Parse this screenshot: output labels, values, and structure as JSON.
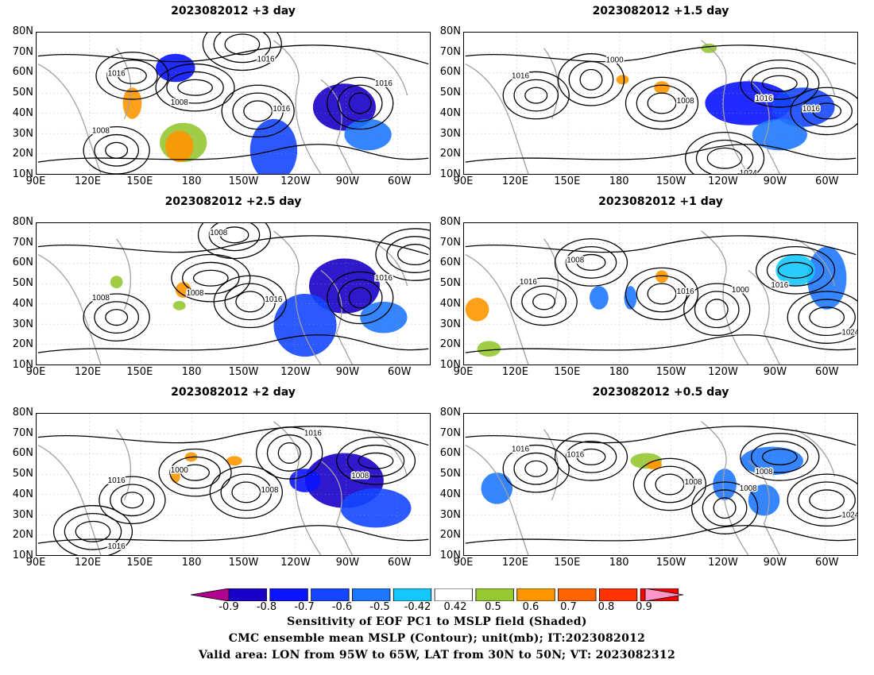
{
  "panels": [
    {
      "title": "2023082012 +3 day",
      "contour_labels": [
        "1016",
        "1008",
        "1008",
        "1016",
        "1016",
        "1016",
        "1008",
        "1016"
      ]
    },
    {
      "title": "2023082012 +1.5 day",
      "contour_labels": [
        "1008",
        "1016",
        "1008",
        "1000",
        "1016",
        "1024",
        "1016",
        "1008",
        "1016"
      ]
    },
    {
      "title": "2023082012 +2.5 day",
      "contour_labels": [
        "1016",
        "1016",
        "1008",
        "1016",
        "1008",
        "1016",
        "1008"
      ]
    },
    {
      "title": "2023082012 +1 day",
      "contour_labels": [
        "1008",
        "1008",
        "1016",
        "1000",
        "1008",
        "1024",
        "1016",
        "1016"
      ]
    },
    {
      "title": "2023082012 +2 day",
      "contour_labels": [
        "1016",
        "1008",
        "1016",
        "1016",
        "1000",
        "1016",
        "1016",
        "1008",
        "1008"
      ]
    },
    {
      "title": "2023082012 +0.5 day",
      "contour_labels": [
        "1008",
        "1016",
        "1000",
        "1008",
        "1016",
        "1024",
        "1016",
        "1008",
        "1008"
      ]
    }
  ],
  "lat_labels": [
    "80N",
    "70N",
    "60N",
    "50N",
    "40N",
    "30N",
    "20N",
    "10N"
  ],
  "lon_labels": [
    "90E",
    "120E",
    "150E",
    "180",
    "150W",
    "120W",
    "90W",
    "60W"
  ],
  "colorbar": {
    "labels": [
      "-0.9",
      "-0.8",
      "-0.7",
      "-0.6",
      "-0.5",
      "-0.42",
      "0.42",
      "0.5",
      "0.6",
      "0.7",
      "0.8",
      "0.9"
    ],
    "colors": [
      "#b0008e",
      "#1a00c8",
      "#0a14ff",
      "#1446ff",
      "#1e78ff",
      "#14c8ff",
      "#ffffff",
      "#96c832",
      "#ff9600",
      "#ff6400",
      "#ff3200",
      "#ff0000",
      "#ff96c8"
    ]
  },
  "caption": [
    "Sensitivity of EOF PC1 to MSLP field (Shaded)",
    "CMC ensemble mean MSLP (Contour); unit(mb); IT:2023082012",
    "Valid area: LON from 95W to 65W, LAT from 30N to 50N; VT: 2023082312"
  ]
}
